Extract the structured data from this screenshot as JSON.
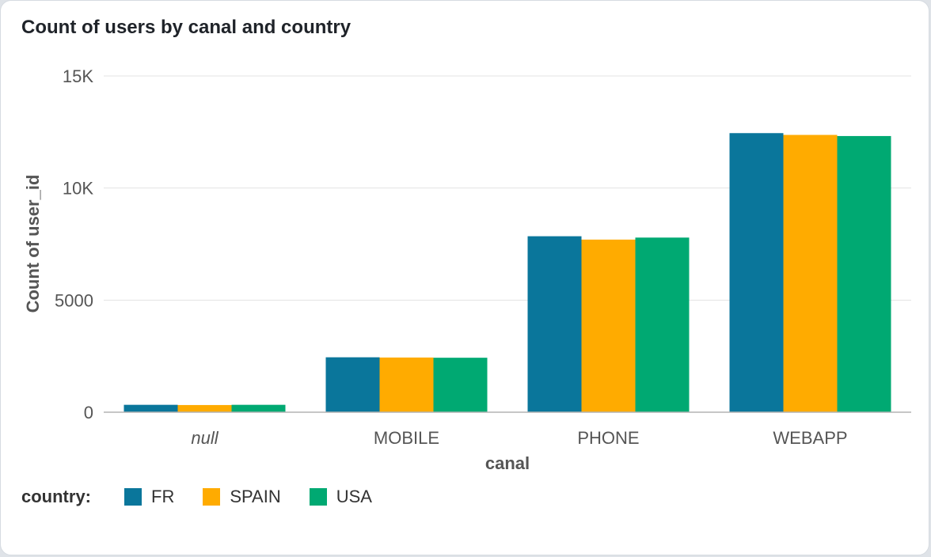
{
  "card": {
    "title": "Count of users by canal and country"
  },
  "chart_data": {
    "type": "bar",
    "categories": [
      "null",
      "MOBILE",
      "PHONE",
      "WEBAPP"
    ],
    "series": [
      {
        "name": "FR",
        "color": "#0a769b",
        "values": [
          330,
          2450,
          7850,
          12450
        ]
      },
      {
        "name": "SPAIN",
        "color": "#ffab00",
        "values": [
          320,
          2440,
          7700,
          12370
        ]
      },
      {
        "name": "USA",
        "color": "#00a972",
        "values": [
          330,
          2430,
          7790,
          12320
        ]
      }
    ],
    "xlabel": "canal",
    "ylabel": "Count of user_id",
    "ylim": [
      0,
      15000
    ],
    "yticks": [
      0,
      5000,
      10000,
      15000
    ],
    "ytick_labels": [
      "0",
      "5000",
      "10K",
      "15K"
    ],
    "grid": true,
    "legend": {
      "title": "country:",
      "placement": "bottom-left"
    }
  }
}
